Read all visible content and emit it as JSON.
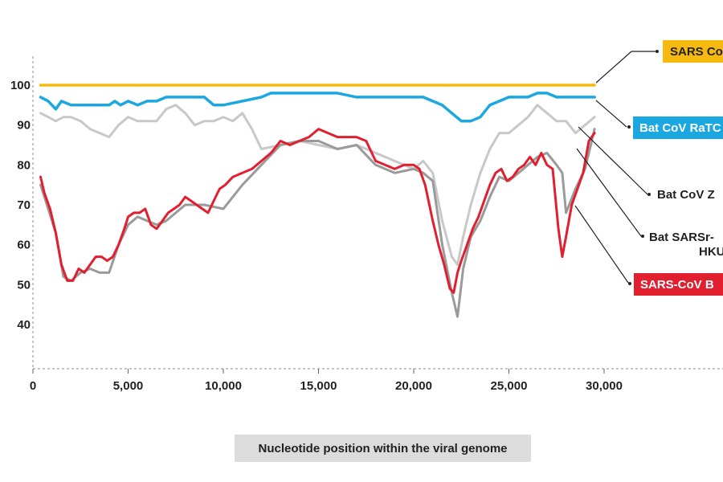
{
  "chart_data": {
    "type": "line",
    "xlabel": "Nucleotide position within the viral genome",
    "ylabel": "",
    "xlim": [
      0,
      30000
    ],
    "ylim": [
      30,
      108
    ],
    "x_ticks": [
      0,
      5000,
      10000,
      15000,
      20000,
      25000,
      30000
    ],
    "x_tick_labels": [
      "0",
      "5,000",
      "10,000",
      "15,000",
      "20,000",
      "25,000",
      "30,000"
    ],
    "y_ticks": [
      40,
      50,
      60,
      70,
      80,
      90,
      100
    ],
    "y_tick_labels": [
      "40",
      "50",
      "60",
      "70",
      "80",
      "90",
      "100"
    ],
    "grid": false,
    "legend": "right, direct labels",
    "series": [
      {
        "name": "SARS Co",
        "color": "#f5b90f",
        "x": [
          400,
          29500
        ],
        "y": [
          100,
          100
        ]
      },
      {
        "name": "Bat CoV RaTC",
        "color": "#1ba7e0",
        "x": [
          400,
          800,
          1200,
          1500,
          2000,
          3000,
          4000,
          4300,
          4600,
          5000,
          5500,
          6000,
          6500,
          7000,
          8000,
          9000,
          9500,
          10000,
          11000,
          12000,
          12500,
          14000,
          16000,
          17000,
          18000,
          19000,
          20000,
          20500,
          21000,
          21500,
          22000,
          22500,
          23000,
          23500,
          24000,
          25000,
          26000,
          26500,
          27000,
          27500,
          28000,
          29500
        ],
        "y": [
          97,
          96,
          94,
          96,
          95,
          95,
          95,
          96,
          95,
          96,
          95,
          96,
          96,
          97,
          97,
          97,
          95,
          95,
          96,
          97,
          98,
          98,
          98,
          97,
          97,
          97,
          97,
          97,
          96,
          95,
          93,
          91,
          91,
          92,
          95,
          97,
          97,
          98,
          98,
          97,
          97,
          97
        ]
      },
      {
        "name": "Bat CoV Z",
        "color": "#c8c8c8",
        "x": [
          400,
          800,
          1200,
          1600,
          2000,
          2500,
          3000,
          3500,
          4000,
          4500,
          5000,
          5500,
          6000,
          6500,
          7000,
          7500,
          8000,
          8500,
          9000,
          9500,
          10000,
          10500,
          11000,
          11500,
          12000,
          13000,
          14000,
          15000,
          16000,
          17000,
          18000,
          19000,
          20000,
          20500,
          21000,
          21500,
          22000,
          22300,
          22600,
          23000,
          23500,
          24000,
          24500,
          25000,
          25500,
          26000,
          26500,
          27000,
          27500,
          28000,
          28500,
          29000,
          29500
        ],
        "y": [
          93,
          92,
          91,
          92,
          92,
          91,
          89,
          88,
          87,
          90,
          92,
          91,
          91,
          91,
          94,
          95,
          93,
          90,
          91,
          91,
          92,
          91,
          93,
          89,
          84,
          85,
          86,
          85,
          84,
          85,
          83,
          81,
          79,
          81,
          78,
          66,
          57,
          55,
          62,
          70,
          78,
          84,
          88,
          88,
          90,
          92,
          95,
          93,
          91,
          91,
          88,
          90,
          92
        ]
      },
      {
        "name": "Bat SARSr-\nHKU",
        "color": "#9a9a9a",
        "x": [
          400,
          800,
          1200,
          1600,
          2000,
          2500,
          3000,
          3500,
          4000,
          4500,
          5000,
          5500,
          6000,
          6500,
          7000,
          7500,
          8000,
          9000,
          10000,
          11000,
          12000,
          13000,
          14000,
          15000,
          16000,
          17000,
          18000,
          19000,
          20000,
          20500,
          21000,
          21500,
          22000,
          22300,
          22600,
          23000,
          23500,
          24000,
          24500,
          25000,
          25500,
          26000,
          26500,
          27000,
          27500,
          27800,
          28000,
          28500,
          29000,
          29500
        ],
        "y": [
          75,
          69,
          63,
          52,
          51,
          53,
          54,
          53,
          53,
          60,
          65,
          67,
          66,
          65,
          66,
          68,
          70,
          70,
          69,
          75,
          80,
          85,
          86,
          86,
          84,
          85,
          80,
          78,
          79,
          78,
          76,
          60,
          48,
          42,
          54,
          62,
          66,
          72,
          77,
          76,
          78,
          80,
          82,
          83,
          80,
          78,
          68,
          74,
          79,
          89
        ]
      },
      {
        "name": "SARS-CoV B",
        "color": "#e11f2f",
        "x": [
          400,
          600,
          900,
          1200,
          1500,
          1800,
          2100,
          2400,
          2700,
          3000,
          3300,
          3600,
          3900,
          4200,
          4500,
          4800,
          5000,
          5300,
          5600,
          5900,
          6200,
          6500,
          6800,
          7100,
          7400,
          7700,
          8000,
          8300,
          8600,
          8900,
          9200,
          9500,
          9800,
          10100,
          10500,
          11000,
          11500,
          12000,
          12500,
          13000,
          13500,
          14000,
          14500,
          15000,
          15500,
          16000,
          16500,
          17000,
          17500,
          18000,
          18500,
          19000,
          19500,
          20000,
          20300,
          20600,
          21000,
          21300,
          21600,
          21900,
          22100,
          22300,
          22500,
          22800,
          23100,
          23400,
          23700,
          24000,
          24300,
          24600,
          24900,
          25200,
          25500,
          25800,
          26100,
          26400,
          26700,
          27000,
          27300,
          27600,
          27800,
          28000,
          28300,
          28600,
          28900,
          29200,
          29500
        ],
        "y": [
          77,
          73,
          69,
          63,
          55,
          51,
          51,
          54,
          53,
          55,
          57,
          57,
          56,
          57,
          60,
          64,
          67,
          68,
          68,
          69,
          65,
          64,
          66,
          68,
          69,
          70,
          72,
          71,
          70,
          69,
          68,
          71,
          74,
          75,
          77,
          78,
          79,
          81,
          83,
          86,
          85,
          86,
          87,
          89,
          88,
          87,
          87,
          87,
          86,
          81,
          80,
          79,
          80,
          80,
          79,
          75,
          66,
          60,
          55,
          49,
          48,
          53,
          56,
          60,
          64,
          67,
          71,
          75,
          78,
          79,
          76,
          77,
          79,
          80,
          82,
          80,
          83,
          80,
          79,
          64,
          57,
          62,
          70,
          74,
          78,
          86,
          88
        ]
      }
    ]
  },
  "labels": {
    "sars": "SARS Co",
    "ratg": "Bat CoV RaTC",
    "zc": "Bat CoV Z",
    "hku_line1": "Bat SARSr-",
    "hku_line2": "HKU",
    "bj": "SARS-CoV B"
  },
  "colors": {
    "sars_fill": "#f5b90f",
    "ratg_fill": "#1ba7e0",
    "bj_fill": "#e11f2f",
    "axis": "#888888",
    "xlabel_box": "#dcdcdc"
  }
}
